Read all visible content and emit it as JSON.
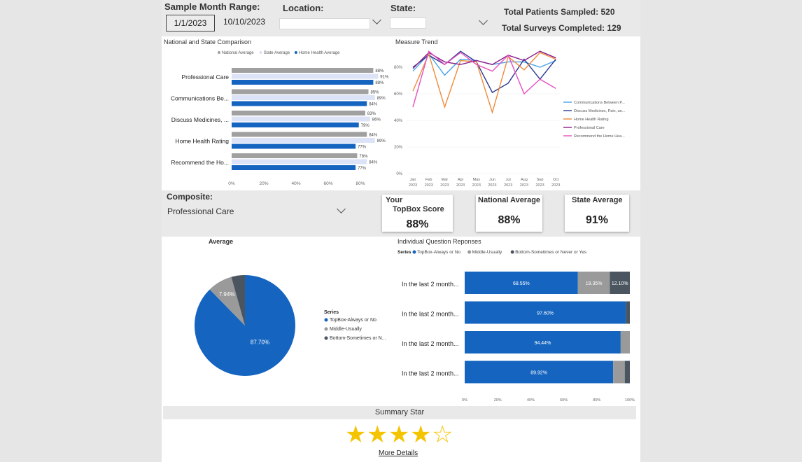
{
  "filters": {
    "sample_month_range_label": "Sample Month Range:",
    "start_date": "1/1/2023",
    "end_date": "10/10/2023",
    "location_label": "Location:",
    "location_value": "",
    "state_label": "State:",
    "state_value": ""
  },
  "totals": {
    "patients_sampled": "Total Patients Sampled: 520",
    "surveys_completed": "Total Surveys Completed: 129"
  },
  "comparison_chart": {
    "title": "National and State Comparison",
    "legend": [
      "National Average",
      "State Average",
      "Home Health Average"
    ],
    "colors": [
      "#a0a0a0",
      "#dde3f7",
      "#1565c0"
    ],
    "categories": [
      "Professional Care",
      "Communications Be...",
      "Discuss Medicines, ...",
      "Home Health Rating",
      "Recommend the Ho..."
    ],
    "x_ticks": [
      "0%",
      "20%",
      "40%",
      "60%",
      "80%"
    ],
    "series_values": [
      [
        88,
        85,
        83,
        84,
        78
      ],
      [
        91,
        89,
        86,
        89,
        84
      ],
      [
        88,
        84,
        79,
        77,
        77
      ]
    ]
  },
  "trend_chart": {
    "title": "Measure Trend",
    "y_ticks": [
      "0%",
      "20%",
      "40%",
      "60%",
      "80%"
    ],
    "months": [
      "Jan",
      "Feb",
      "Mar",
      "Apr",
      "May",
      "Jun",
      "Jul",
      "Aug",
      "Sep",
      "Oct"
    ],
    "year": "2023",
    "series": [
      {
        "name": "Communications Between P...",
        "color": "#4aa3e8",
        "values": [
          77,
          90,
          74,
          86,
          85,
          82,
          84,
          84,
          80,
          85
        ]
      },
      {
        "name": "Discuss Medicines, Pain, an...",
        "color": "#2b3a8f",
        "values": [
          80,
          89,
          82,
          92,
          84,
          61,
          68,
          86,
          71,
          86
        ]
      },
      {
        "name": "Home Health Rating",
        "color": "#f08a3a",
        "values": [
          62,
          90,
          50,
          85,
          84,
          46,
          88,
          78,
          91,
          86
        ]
      },
      {
        "name": "Professional Care",
        "color": "#8a1f8a",
        "values": [
          79,
          91,
          84,
          82,
          85,
          82,
          89,
          85,
          92,
          87
        ]
      },
      {
        "name": "Recommend the Home Hea...",
        "color": "#e84ec0",
        "values": [
          50,
          92,
          82,
          91,
          82,
          77,
          89,
          60,
          71,
          64
        ]
      }
    ]
  },
  "composite": {
    "label": "Composite:",
    "value": "Professional Care"
  },
  "kpis": {
    "your_label": "Your",
    "topbox_label": "TopBox Score",
    "topbox_value": "88%",
    "national_label": "National Average",
    "national_value": "88%",
    "state_label": "State Average",
    "state_value": "91%"
  },
  "pie_chart": {
    "title": "Average",
    "legend_title": "Series",
    "slices": [
      {
        "name": "TopBox-Always or No",
        "value": 87.7,
        "label": "87.70%",
        "color": "#1565c0"
      },
      {
        "name": "Middle-Usually",
        "value": 7.94,
        "label": "7.94%",
        "color": "#9a9a9a"
      },
      {
        "name": "Bottom-Sometimes or N...",
        "value": 4.36,
        "label": "",
        "color": "#4a5560"
      }
    ]
  },
  "question_chart": {
    "title": "Individual Question Reponses",
    "legend_title": "Series",
    "legend": [
      "TopBox-Always or No",
      "Middle-Usually",
      "Bottom-Sometimes or Never or Yes"
    ],
    "colors": [
      "#1565c0",
      "#9a9a9a",
      "#4a5560"
    ],
    "rows": [
      {
        "label": "In the last 2 month...",
        "values": [
          68.55,
          19.35,
          12.1
        ],
        "labels": [
          "68.55%",
          "19.35%",
          "12.10%"
        ]
      },
      {
        "label": "In the last 2 month...",
        "values": [
          97.6,
          0,
          2.4
        ],
        "labels": [
          "97.60%",
          "",
          ""
        ]
      },
      {
        "label": "In the last 2 month...",
        "values": [
          94.44,
          5.56,
          0
        ],
        "labels": [
          "94.44%",
          "",
          ""
        ]
      },
      {
        "label": "In the last 2 month...",
        "values": [
          89.92,
          7.0,
          3.08
        ],
        "labels": [
          "89.92%",
          "",
          ""
        ]
      }
    ],
    "x_ticks": [
      "0%",
      "20%",
      "40%",
      "60%",
      "80%",
      "100%"
    ]
  },
  "summary": {
    "title": "Summary Star",
    "rating": 4,
    "max": 5,
    "more_details": "More Details"
  },
  "chart_data": [
    {
      "type": "bar",
      "title": "National and State Comparison",
      "categories": [
        "Professional Care",
        "Communications Be...",
        "Discuss Medicines, ...",
        "Home Health Rating",
        "Recommend the Ho..."
      ],
      "series": [
        {
          "name": "National Average",
          "values": [
            88,
            85,
            83,
            84,
            78
          ]
        },
        {
          "name": "State Average",
          "values": [
            91,
            89,
            86,
            89,
            84
          ]
        },
        {
          "name": "Home Health Average",
          "values": [
            88,
            84,
            79,
            77,
            77
          ]
        }
      ]
    },
    {
      "type": "line",
      "title": "Measure Trend",
      "x": [
        "Jan 2023",
        "Feb 2023",
        "Mar 2023",
        "Apr 2023",
        "May 2023",
        "Jun 2023",
        "Jul 2023",
        "Aug 2023",
        "Sep 2023",
        "Oct 2023"
      ],
      "ylim": [
        0,
        100
      ]
    },
    {
      "type": "pie",
      "title": "Average",
      "values": [
        87.7,
        7.94,
        4.36
      ]
    },
    {
      "type": "bar",
      "title": "Individual Question Reponses",
      "stacked": true
    }
  ]
}
